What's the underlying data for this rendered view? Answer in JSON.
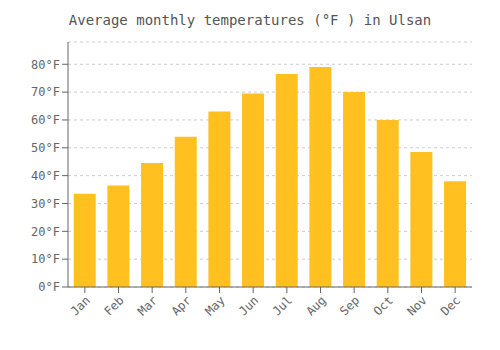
{
  "chart_data": {
    "type": "bar",
    "title": "Average monthly temperatures (°F ) in Ulsan",
    "categories": [
      "Jan",
      "Feb",
      "Mar",
      "Apr",
      "May",
      "Jun",
      "Jul",
      "Aug",
      "Sep",
      "Oct",
      "Nov",
      "Dec"
    ],
    "values": [
      33.5,
      36.5,
      44.5,
      54.0,
      63.0,
      69.5,
      76.5,
      79.0,
      70.0,
      60.0,
      48.5,
      38.0
    ],
    "color": "#FFC020",
    "ylim": [
      0,
      88
    ],
    "yticks": [
      {
        "value": 0,
        "label": "0°F"
      },
      {
        "value": 10,
        "label": "10°F"
      },
      {
        "value": 20,
        "label": "20°F"
      },
      {
        "value": 30,
        "label": "30°F"
      },
      {
        "value": 40,
        "label": "40°F"
      },
      {
        "value": 50,
        "label": "50°F"
      },
      {
        "value": 60,
        "label": "60°F"
      },
      {
        "value": 70,
        "label": "70°F"
      },
      {
        "value": 80,
        "label": "80°F"
      }
    ],
    "grid": true
  }
}
